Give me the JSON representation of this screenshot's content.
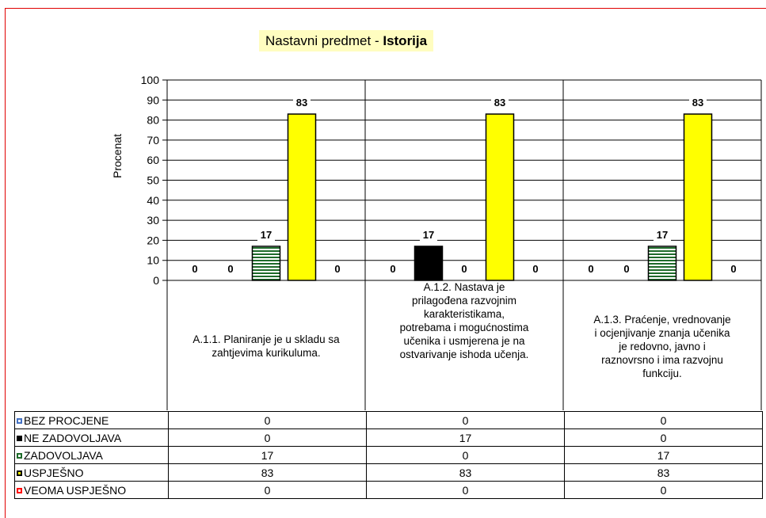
{
  "chart_data": {
    "type": "bar",
    "title_prefix": "Nastavni predmet - ",
    "title_subject": "Istorija",
    "ylabel": "Procenat",
    "ylim": [
      0,
      100
    ],
    "yticks": [
      "0",
      "10",
      "20",
      "30",
      "40",
      "50",
      "60",
      "70",
      "80",
      "90",
      "100"
    ],
    "grid": true,
    "categories": [
      "A.1.1. Planiranje je u skladu sa zahtjevima kurikuluma.",
      "A.1.2. Nastava je prilagođena razvojnim karakteristikama, potrebama i mogućnostima učenika i usmjerena je na ostvarivanje ishoda učenja.",
      "A.1.3. Praćenje, vrednovanje i ocjenjivanje znanja učenika je redovno, javno i raznovrsno i ima razvojnu funkciju."
    ],
    "series": [
      {
        "name": "BEZ PROCJENE",
        "color": "#4472c4",
        "values": [
          0,
          0,
          0
        ],
        "labels": [
          "0",
          "0",
          "0"
        ]
      },
      {
        "name": "NE ZADOVOLJAVA",
        "color": "#000000",
        "values": [
          0,
          17,
          0
        ],
        "labels": [
          "0",
          "17",
          "0"
        ]
      },
      {
        "name": "ZADOVOLJAVA",
        "color": "#1e6b2a",
        "values": [
          17,
          0,
          17
        ],
        "labels": [
          "17",
          "0",
          "17"
        ]
      },
      {
        "name": "USPJEŠNO",
        "color": "#ffff00",
        "values": [
          83,
          83,
          83
        ],
        "labels": [
          "83",
          "83",
          "83"
        ]
      },
      {
        "name": "VEOMA USPJEŠNO",
        "color": "#ff0000",
        "values": [
          0,
          0,
          0
        ],
        "labels": [
          "0",
          "0",
          "0"
        ]
      }
    ]
  }
}
